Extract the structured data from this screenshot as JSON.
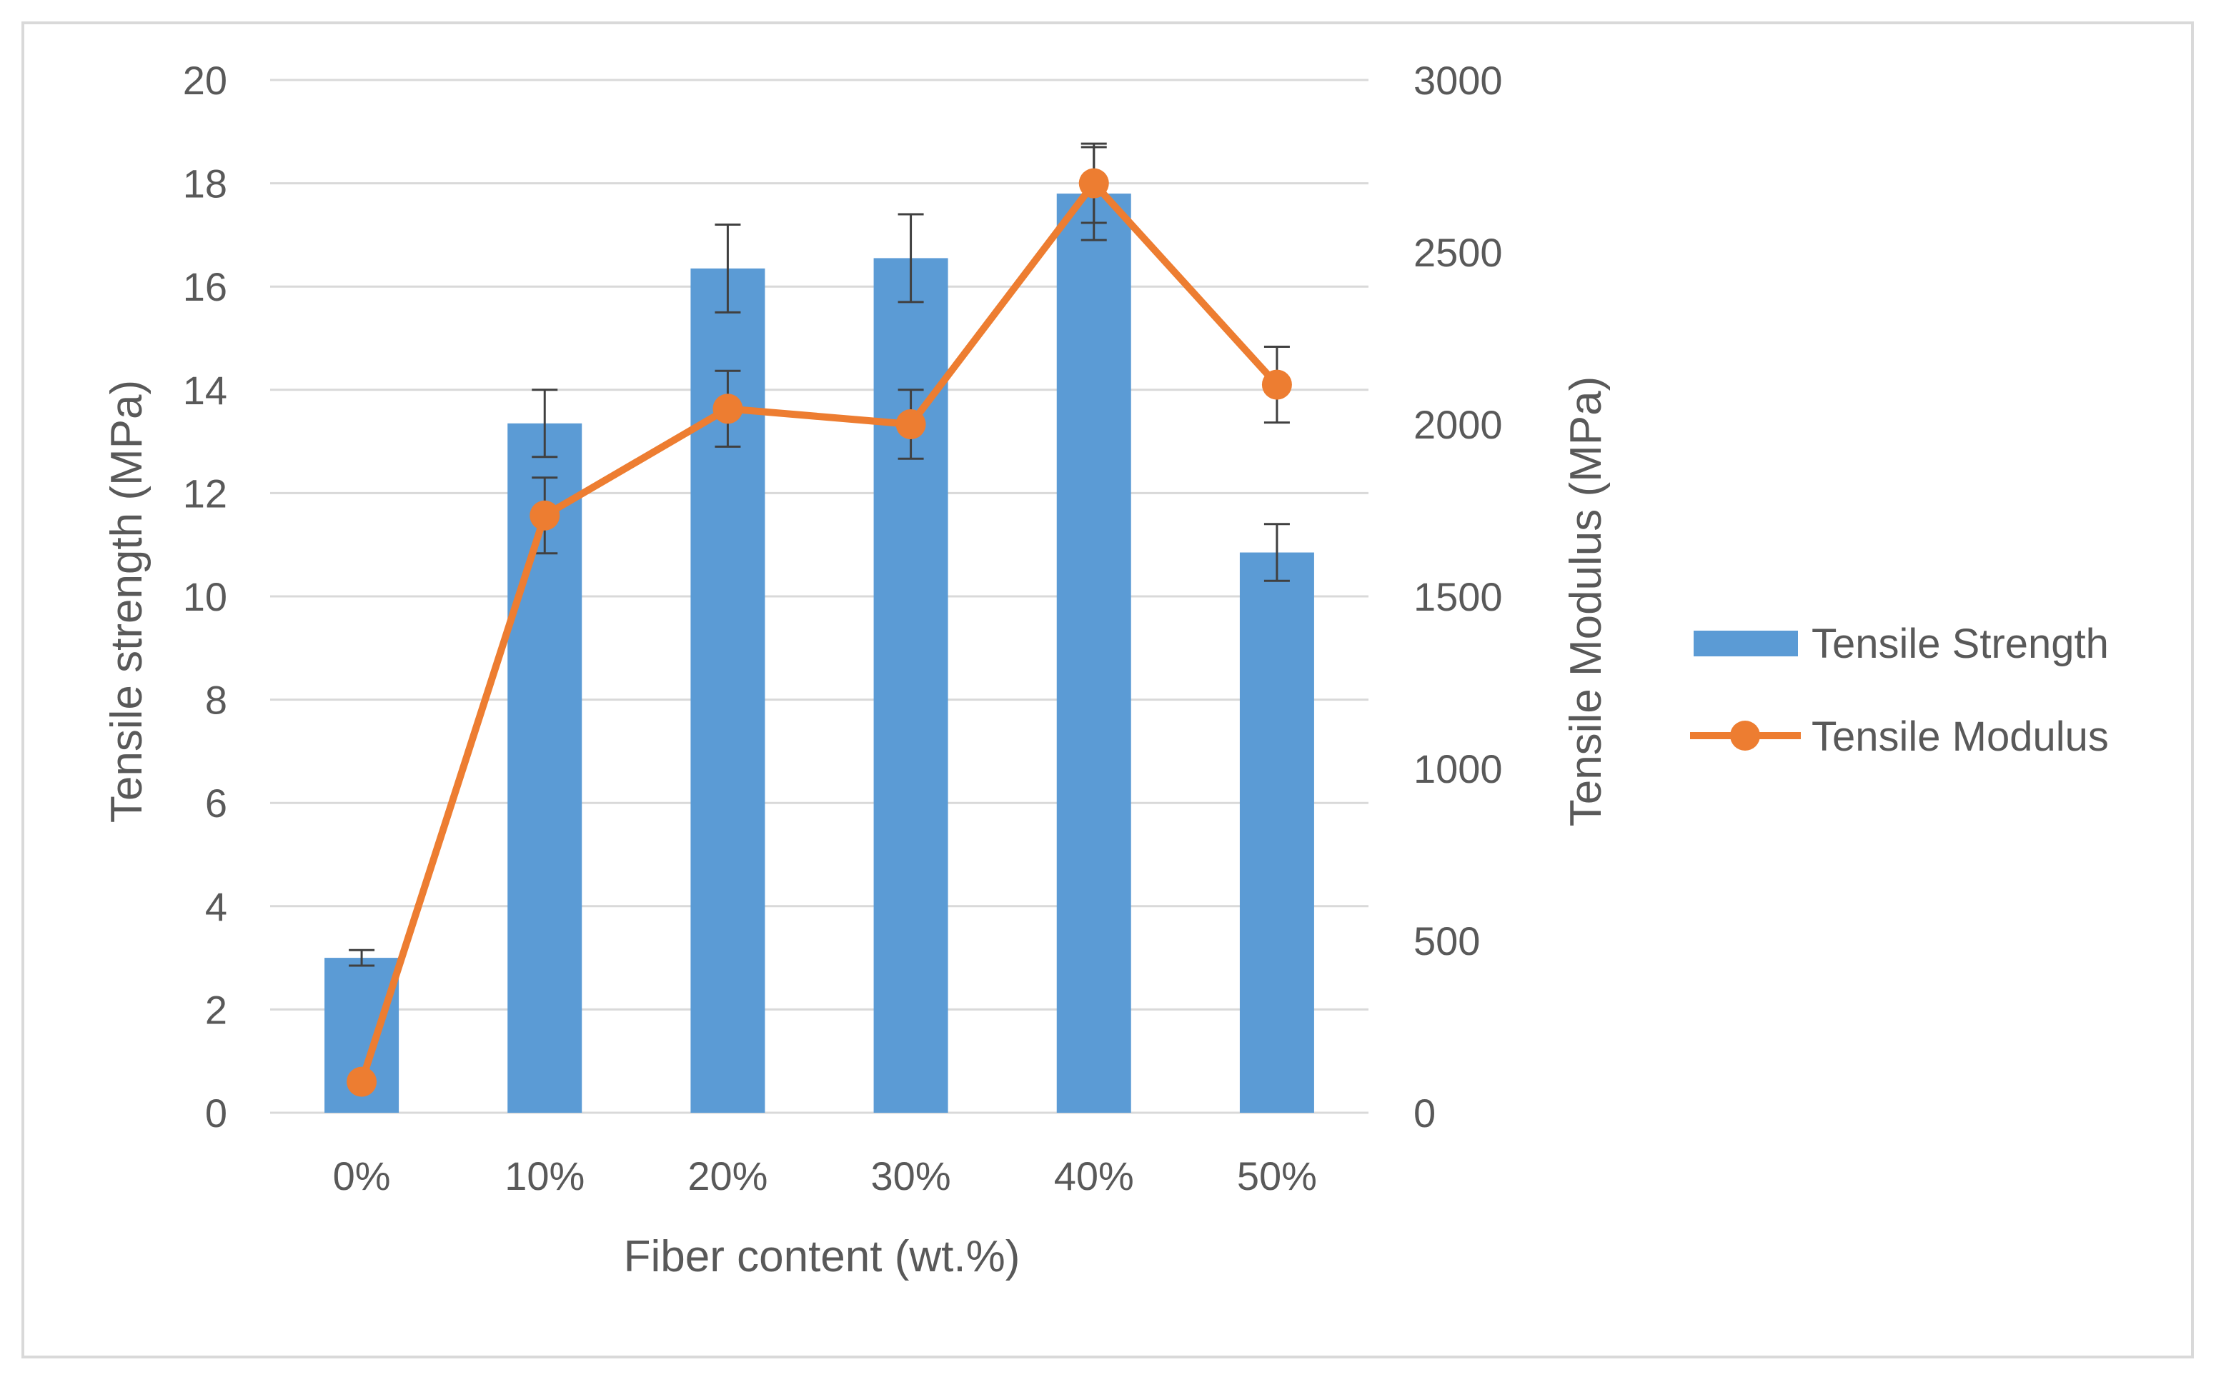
{
  "chart_data": {
    "type": "bar",
    "categories": [
      "0%",
      "10%",
      "20%",
      "30%",
      "40%",
      "50%"
    ],
    "xlabel": "Fiber content (wt.%)",
    "ylabel": "Tensile strength (MPa)",
    "y2label": "Tensile Modulus (MPa)",
    "ylim": [
      0,
      20
    ],
    "y2lim": [
      0,
      3000
    ],
    "yticks": [
      "0",
      "2",
      "4",
      "6",
      "8",
      "10",
      "12",
      "14",
      "16",
      "18",
      "20"
    ],
    "y2ticks": [
      "0",
      "500",
      "1000",
      "1500",
      "2000",
      "2500",
      "3000"
    ],
    "grid": true,
    "legend_position": "right",
    "series": [
      {
        "name": "Tensile Strength",
        "type": "bar",
        "axis": "left",
        "color": "#5b9bd5",
        "values": [
          3.0,
          13.35,
          16.35,
          16.55,
          17.8,
          10.85
        ],
        "errors": [
          0.15,
          0.65,
          0.85,
          0.85,
          0.9,
          0.55
        ]
      },
      {
        "name": "Tensile Modulus",
        "type": "line",
        "axis": "right",
        "color": "#ed7d31",
        "values": [
          90,
          1735,
          2045,
          2000,
          2700,
          2115
        ],
        "errors": [
          0,
          110,
          110,
          100,
          115,
          110
        ]
      }
    ]
  }
}
